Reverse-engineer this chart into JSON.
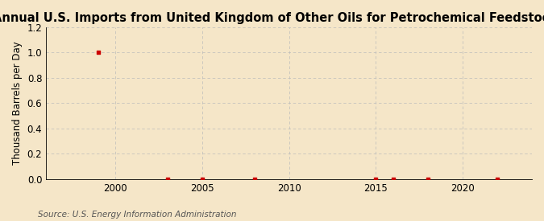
{
  "title": "Annual U.S. Imports from United Kingdom of Other Oils for Petrochemical Feedstock Use",
  "ylabel": "Thousand Barrels per Day",
  "source": "Source: U.S. Energy Information Administration",
  "background_color": "#f5e6c8",
  "plot_background_color": "#f5e6c8",
  "x_data": [
    1999,
    2003,
    2005,
    2008,
    2015,
    2016,
    2018,
    2022
  ],
  "y_data": [
    1.0,
    0.0,
    0.0,
    0.0,
    0.0,
    0.0,
    0.0,
    0.0
  ],
  "marker_color": "#cc0000",
  "marker_size": 3.5,
  "xlim": [
    1996,
    2024
  ],
  "ylim": [
    0.0,
    1.2
  ],
  "yticks": [
    0.0,
    0.2,
    0.4,
    0.6,
    0.8,
    1.0,
    1.2
  ],
  "xticks": [
    2000,
    2005,
    2010,
    2015,
    2020
  ],
  "grid_color": "#bbbbbb",
  "title_fontsize": 10.5,
  "label_fontsize": 8.5,
  "tick_fontsize": 8.5,
  "source_fontsize": 7.5
}
